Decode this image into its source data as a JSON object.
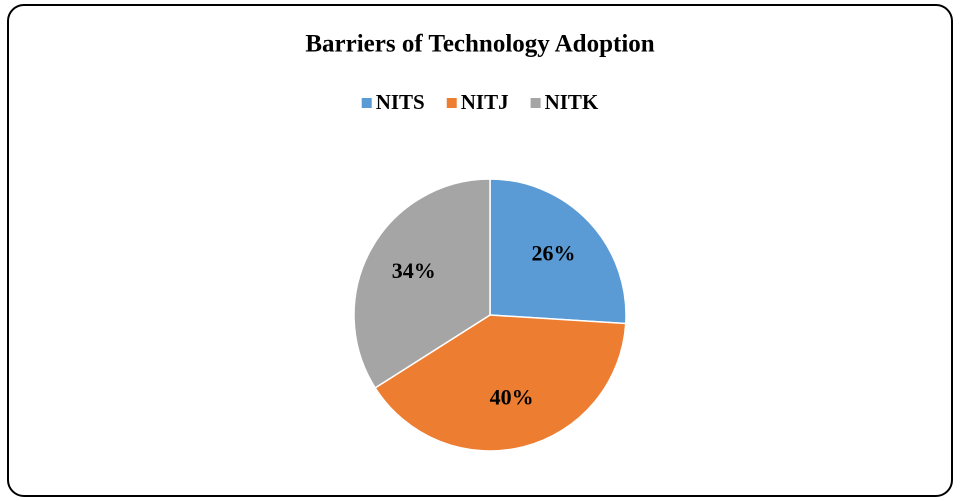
{
  "chart_data": {
    "type": "pie",
    "title": "Barriers of Technology Adoption",
    "categories": [
      "NITS",
      "NITJ",
      "NITK"
    ],
    "values": [
      26,
      40,
      34
    ],
    "value_labels": [
      "26%",
      "40%",
      "34%"
    ],
    "colors": [
      "#5b9bd5",
      "#ed7d31",
      "#a5a5a5"
    ],
    "legend": "top"
  }
}
